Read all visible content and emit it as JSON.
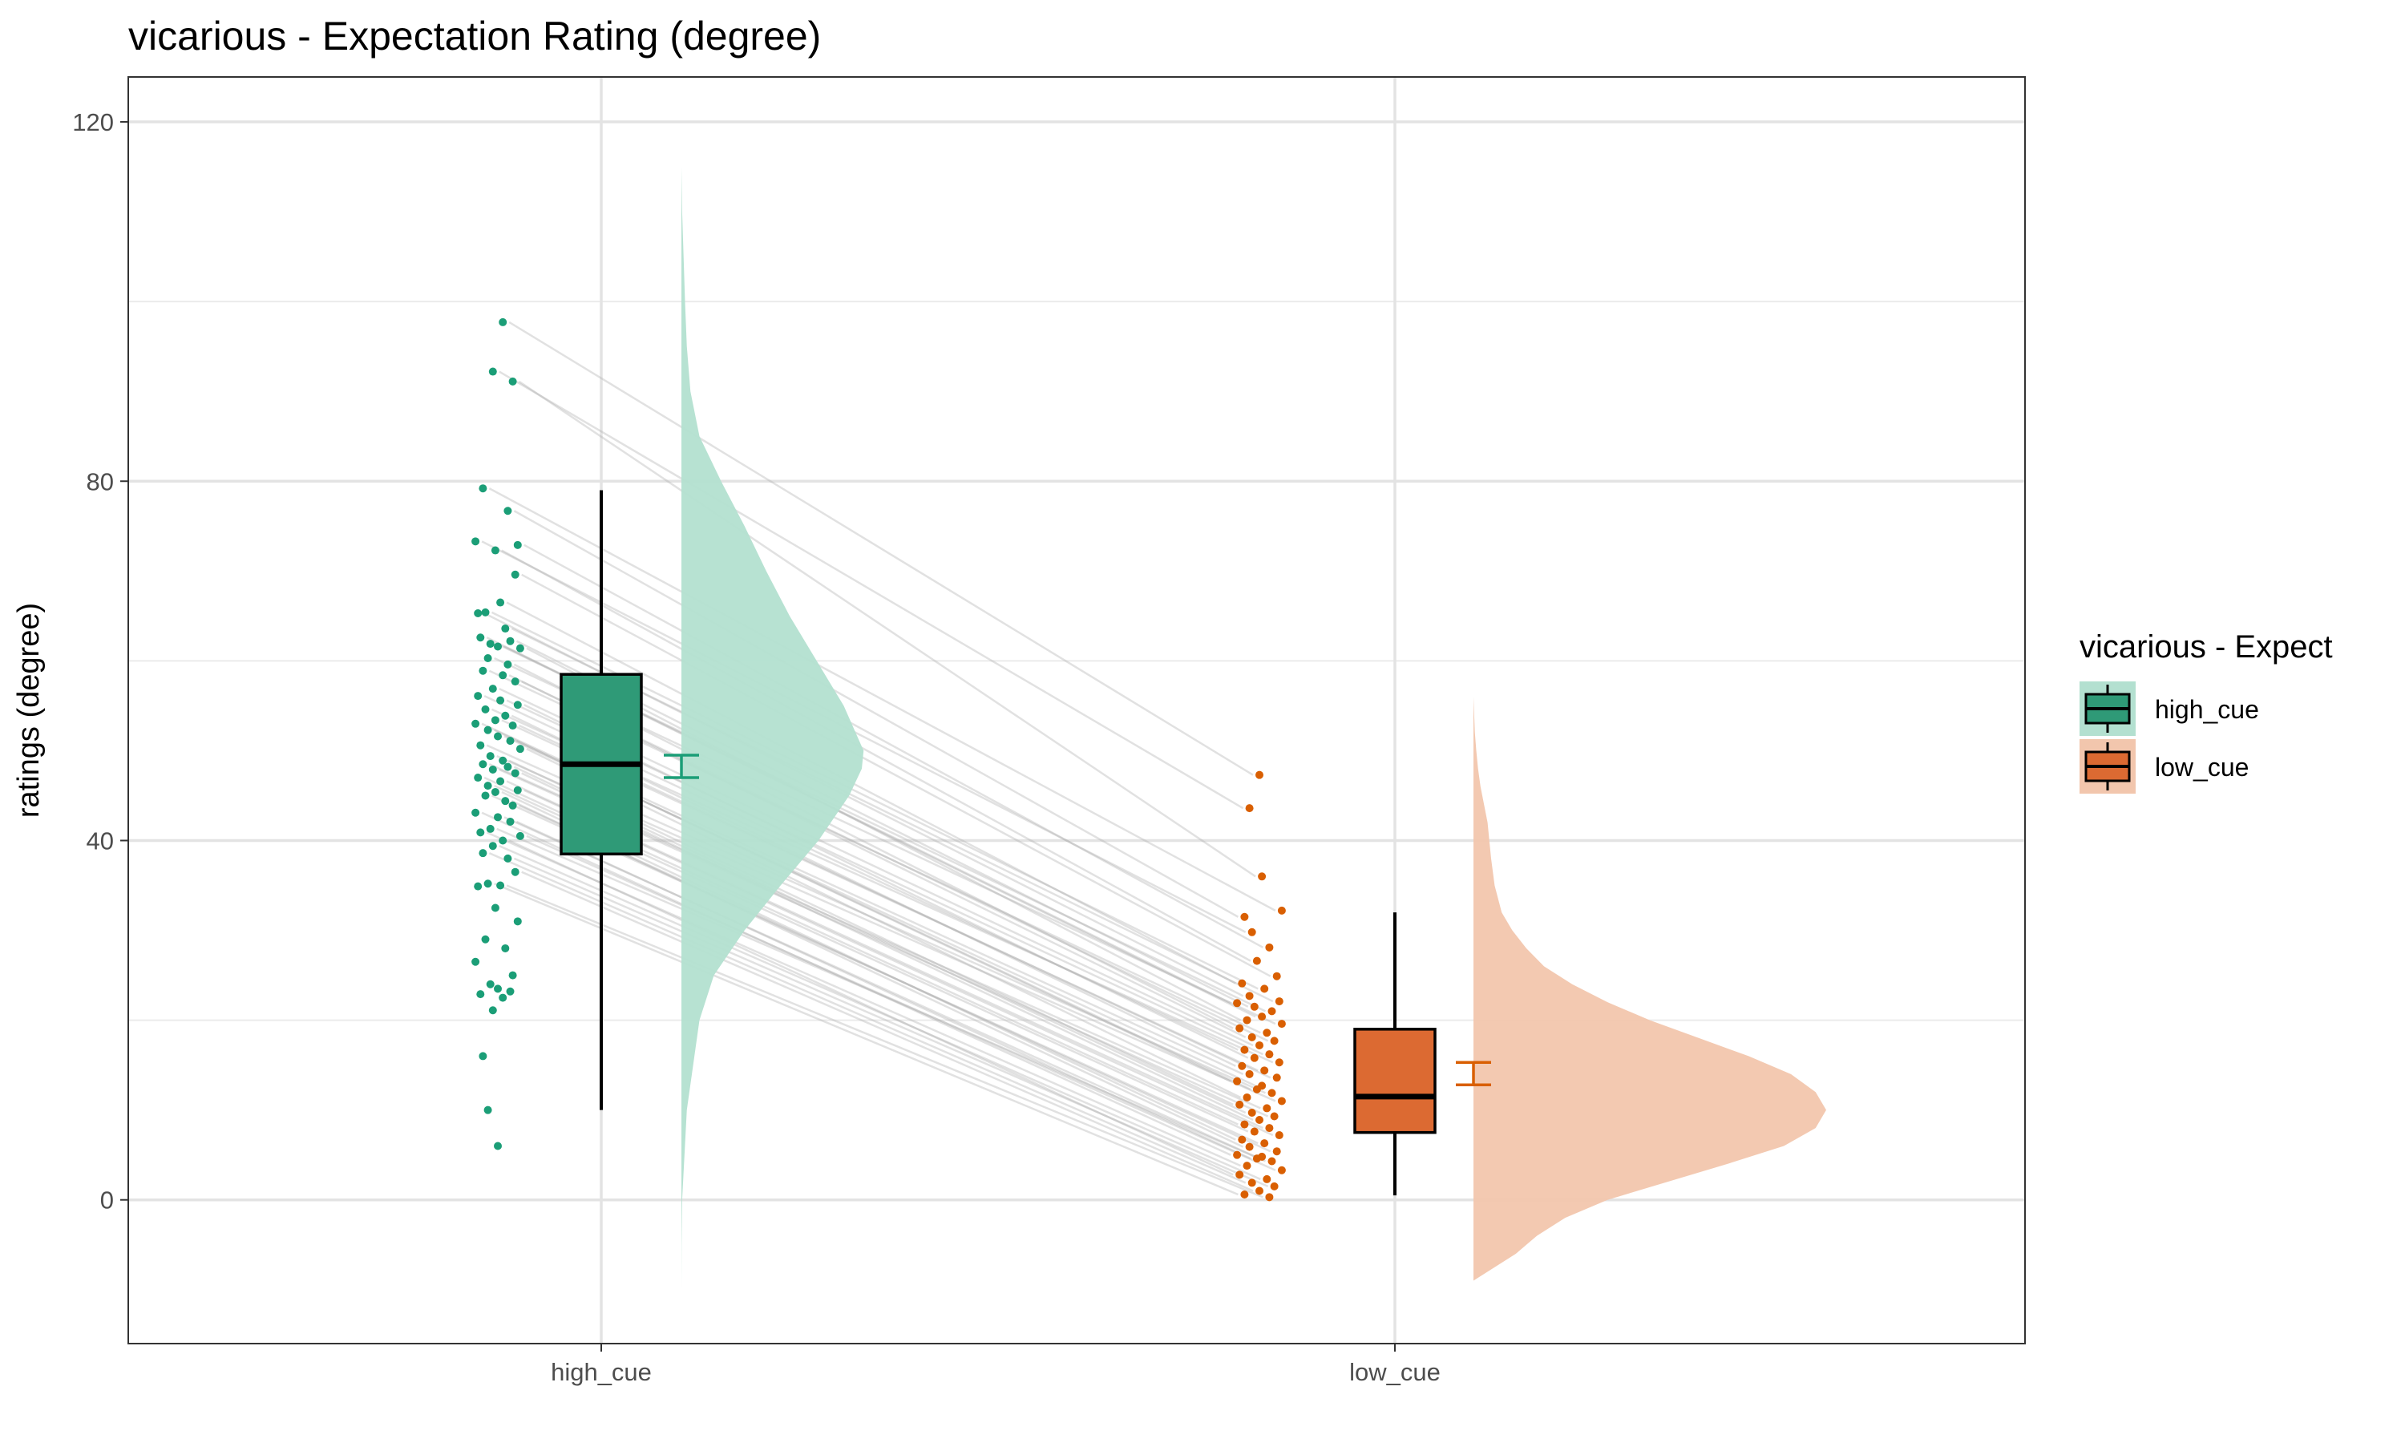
{
  "chart_data": {
    "type": "raincloud",
    "title": "vicarious  - Expectation Rating (degree)",
    "xlabel": "",
    "ylabel": "ratings (degree)",
    "categories": [
      "high_cue",
      "low_cue"
    ],
    "ylim": [
      -16,
      125
    ],
    "yticks": [
      0,
      40,
      80,
      120
    ],
    "grid": true,
    "legend": {
      "title": "vicarious  - Expect",
      "position": "right",
      "entries": [
        "high_cue",
        "low_cue"
      ]
    },
    "colors": {
      "high_cue": "#1b9e77",
      "low_cue": "#d95f02"
    },
    "series": [
      {
        "name": "high_cue",
        "box": {
          "min": 10,
          "q1": 38.5,
          "median": 48.5,
          "q3": 58.5,
          "max": 79
        },
        "mean_ci": [
          47,
          49.5
        ],
        "density": [
          [
            -10,
            0
          ],
          [
            -5,
            0.1
          ],
          [
            0,
            0.4
          ],
          [
            10,
            3
          ],
          [
            20,
            10
          ],
          [
            25,
            18
          ],
          [
            30,
            35
          ],
          [
            35,
            55
          ],
          [
            40,
            76
          ],
          [
            45,
            93
          ],
          [
            48,
            100
          ],
          [
            50,
            101
          ],
          [
            55,
            90
          ],
          [
            60,
            75
          ],
          [
            65,
            60
          ],
          [
            70,
            47
          ],
          [
            75,
            35
          ],
          [
            80,
            22
          ],
          [
            85,
            10
          ],
          [
            90,
            5
          ],
          [
            95,
            3
          ],
          [
            100,
            2
          ],
          [
            105,
            1.2
          ],
          [
            110,
            0.4
          ],
          [
            115,
            0
          ]
        ],
        "points": [
          97.7,
          92.2,
          91.1,
          79.2,
          76.7,
          73.3,
          72.9,
          72.3,
          69.6,
          66.5,
          65.4,
          65.3,
          63.6,
          62.6,
          62.2,
          61.9,
          61.6,
          61.4,
          60.3,
          59.6,
          58.9,
          58.4,
          57.7,
          56.9,
          56.1,
          55.6,
          55.1,
          54.6,
          53.9,
          53.4,
          53.0,
          52.8,
          52.3,
          51.6,
          51.1,
          50.6,
          50.2,
          49.4,
          48.9,
          48.5,
          48.2,
          47.9,
          47.5,
          47.0,
          46.6,
          46.1,
          45.6,
          45.4,
          45.0,
          44.4,
          43.9,
          43.1,
          42.6,
          42.1,
          41.3,
          40.9,
          40.5,
          40.0,
          39.4,
          38.6,
          38.0,
          36.5,
          35.2,
          35.0,
          34.9,
          32.5,
          31.0,
          29.0,
          28.0,
          26.5,
          25.0,
          24.0,
          23.5,
          23.2,
          22.9,
          22.5,
          21.1,
          16.0,
          10.0,
          6.0
        ],
        "jitter": [
          0.6,
          0.4,
          0.8,
          0.2,
          0.7,
          0.05,
          0.9,
          0.45,
          0.85,
          0.55,
          0.25,
          0.1,
          0.65,
          0.15,
          0.75,
          0.35,
          0.5,
          0.95,
          0.3,
          0.7,
          0.2,
          0.6,
          0.85,
          0.4,
          0.1,
          0.55,
          0.9,
          0.25,
          0.65,
          0.45,
          0.05,
          0.8,
          0.3,
          0.5,
          0.75,
          0.15,
          0.95,
          0.35,
          0.6,
          0.2,
          0.7,
          0.4,
          0.85,
          0.1,
          0.55,
          0.3,
          0.9,
          0.45,
          0.25,
          0.65,
          0.8,
          0.05,
          0.5,
          0.75,
          0.35,
          0.15,
          0.95,
          0.6,
          0.4,
          0.2,
          0.7,
          0.85,
          0.3,
          0.55,
          0.1,
          0.45,
          0.9,
          0.25,
          0.65,
          0.05,
          0.8,
          0.35,
          0.5,
          0.75,
          0.15,
          0.6,
          0.4,
          0.2,
          0.3,
          0.5
        ]
      },
      {
        "name": "low_cue",
        "box": {
          "min": 0.5,
          "q1": 7.5,
          "median": 11.5,
          "q3": 19,
          "max": 32
        },
        "mean_ci": [
          12.8,
          15.3
        ],
        "density": [
          [
            -9,
            0
          ],
          [
            -6,
            12
          ],
          [
            -4,
            18
          ],
          [
            -2,
            26
          ],
          [
            0,
            38
          ],
          [
            2,
            55
          ],
          [
            4,
            72
          ],
          [
            6,
            88
          ],
          [
            8,
            97
          ],
          [
            10,
            100
          ],
          [
            12,
            97
          ],
          [
            14,
            90
          ],
          [
            16,
            78
          ],
          [
            18,
            64
          ],
          [
            20,
            50
          ],
          [
            22,
            38
          ],
          [
            24,
            28
          ],
          [
            26,
            20
          ],
          [
            28,
            15
          ],
          [
            30,
            11
          ],
          [
            32,
            8
          ],
          [
            35,
            6
          ],
          [
            38,
            5
          ],
          [
            40,
            4.5
          ],
          [
            42,
            4
          ],
          [
            44,
            3
          ],
          [
            46,
            2
          ],
          [
            48,
            1.3
          ],
          [
            50,
            0.8
          ],
          [
            52,
            0.4
          ],
          [
            54,
            0.2
          ],
          [
            56,
            0
          ]
        ],
        "points": [
          47.3,
          43.6,
          36.0,
          32.2,
          31.5,
          29.8,
          28.1,
          26.6,
          24.9,
          24.1,
          23.5,
          22.7,
          22.1,
          21.9,
          21.5,
          21.0,
          20.4,
          20.0,
          19.6,
          19.1,
          18.6,
          18.1,
          17.7,
          17.2,
          16.7,
          16.2,
          15.8,
          15.3,
          14.9,
          14.4,
          14.0,
          13.6,
          13.2,
          12.7,
          12.3,
          11.9,
          11.4,
          11.0,
          10.6,
          10.2,
          9.7,
          9.3,
          8.9,
          8.4,
          8.0,
          7.6,
          7.2,
          6.7,
          6.3,
          5.9,
          5.4,
          5.0,
          4.8,
          4.6,
          4.3,
          3.8,
          3.3,
          2.8,
          2.3,
          1.9,
          1.5,
          1.0,
          0.6,
          0.3
        ],
        "jitter": [
          0.5,
          0.3,
          0.55,
          0.95,
          0.2,
          0.35,
          0.7,
          0.45,
          0.85,
          0.15,
          0.6,
          0.3,
          0.9,
          0.05,
          0.4,
          0.75,
          0.55,
          0.25,
          0.95,
          0.1,
          0.65,
          0.35,
          0.8,
          0.5,
          0.2,
          0.7,
          0.4,
          0.9,
          0.15,
          0.6,
          0.3,
          0.85,
          0.05,
          0.55,
          0.45,
          0.75,
          0.25,
          0.95,
          0.1,
          0.65,
          0.35,
          0.8,
          0.5,
          0.2,
          0.7,
          0.4,
          0.9,
          0.15,
          0.6,
          0.3,
          0.85,
          0.05,
          0.55,
          0.45,
          0.75,
          0.25,
          0.95,
          0.1,
          0.65,
          0.35,
          0.8,
          0.5,
          0.2,
          0.7
        ]
      }
    ]
  }
}
